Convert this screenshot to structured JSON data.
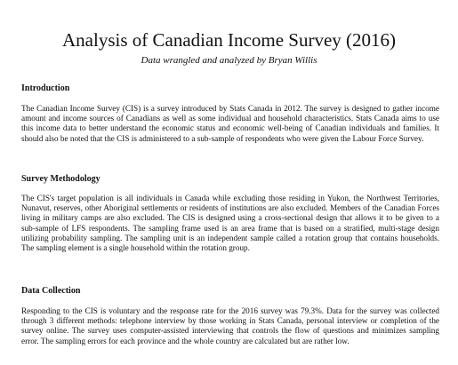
{
  "document": {
    "title": "Analysis of Canadian Income Survey (2016)",
    "byline": "Data wrangled and analyzed by Bryan Willis"
  },
  "sections": [
    {
      "heading": "Introduction",
      "body": "The Canadian Income Survey (CIS) is a survey introduced by Stats Canada in 2012. The survey is designed to gather income amount and income sources of Canadians as well as some individual and household characteristics. Stats Canada aims to use this income data to better understand the economic status and economic well-being of Canadian individuals and families. It should also be noted that the CIS is administered to a sub-sample of respondents who were given the Labour Force Survey."
    },
    {
      "heading": "Survey Methodology",
      "body": "The CIS's target population is all individuals in Canada while excluding those residing in Yukon, the Northwest Territories, Nunavut, reserves, other Aboriginal settlements or residents of institutions are also excluded. Members of the Canadian Forces living in military camps are also excluded. The CIS is designed using a cross-sectional design that allows it to be given to a sub-sample of LFS respondents. The sampling frame used is an area frame that is based on a stratified, multi-stage design utilizing probability sampling. The sampling unit is an independent sample called a rotation group that contains households. The sampling element is a single household within the rotation group."
    },
    {
      "heading": "Data Collection",
      "body": "Responding to the CIS is voluntary and the response rate for the 2016 survey was 79.3%. Data for the survey was collected through 3 different methods: telephone interview by those working in Stats Canada, personal interview or completion of the survey online. The survey uses computer-assisted interviewing that controls the flow of questions and minimizes sampling error. The sampling errors for each province and the whole country are calculated but are rather low."
    }
  ]
}
